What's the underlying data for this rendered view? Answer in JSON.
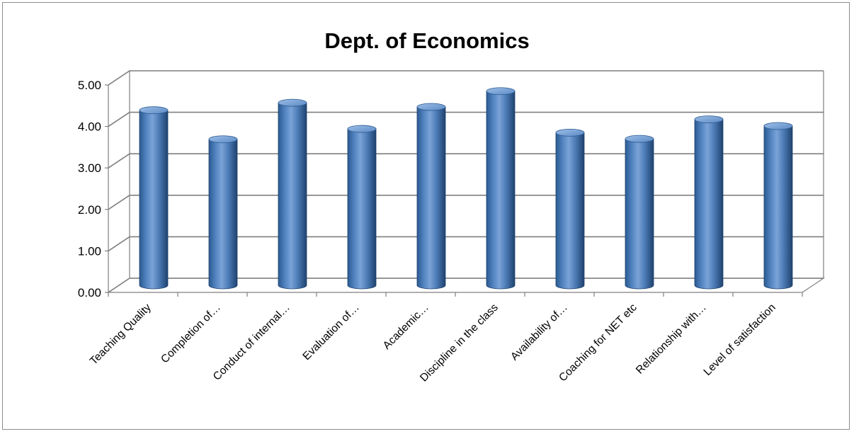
{
  "chart_data": {
    "type": "bar",
    "title": "Dept. of Economics",
    "xlabel": "",
    "ylabel": "",
    "categories": [
      "Teaching Quality",
      "Completion of…",
      "Conduct of internal…",
      "Evaluation of…",
      "Academic…",
      "Discipline in the class",
      "Availability of…",
      "Coaching for NET etc",
      "Relationship with…",
      "Level of satisfaction"
    ],
    "values": [
      4.22,
      3.52,
      4.4,
      3.77,
      4.3,
      4.68,
      3.68,
      3.53,
      4.0,
      3.84
    ],
    "ylim": [
      0,
      5
    ],
    "yticks": [
      "0.00",
      "1.00",
      "2.00",
      "3.00",
      "4.00",
      "5.00"
    ],
    "grid": true,
    "legend": "none",
    "bar_shape": "3d-cylinder",
    "colors": {
      "bar_light": "#8db3e2",
      "bar_mid": "#4f81bd",
      "bar_dark": "#254e7e",
      "grid": "#7f7f7f",
      "wall": "#ffffff"
    }
  }
}
